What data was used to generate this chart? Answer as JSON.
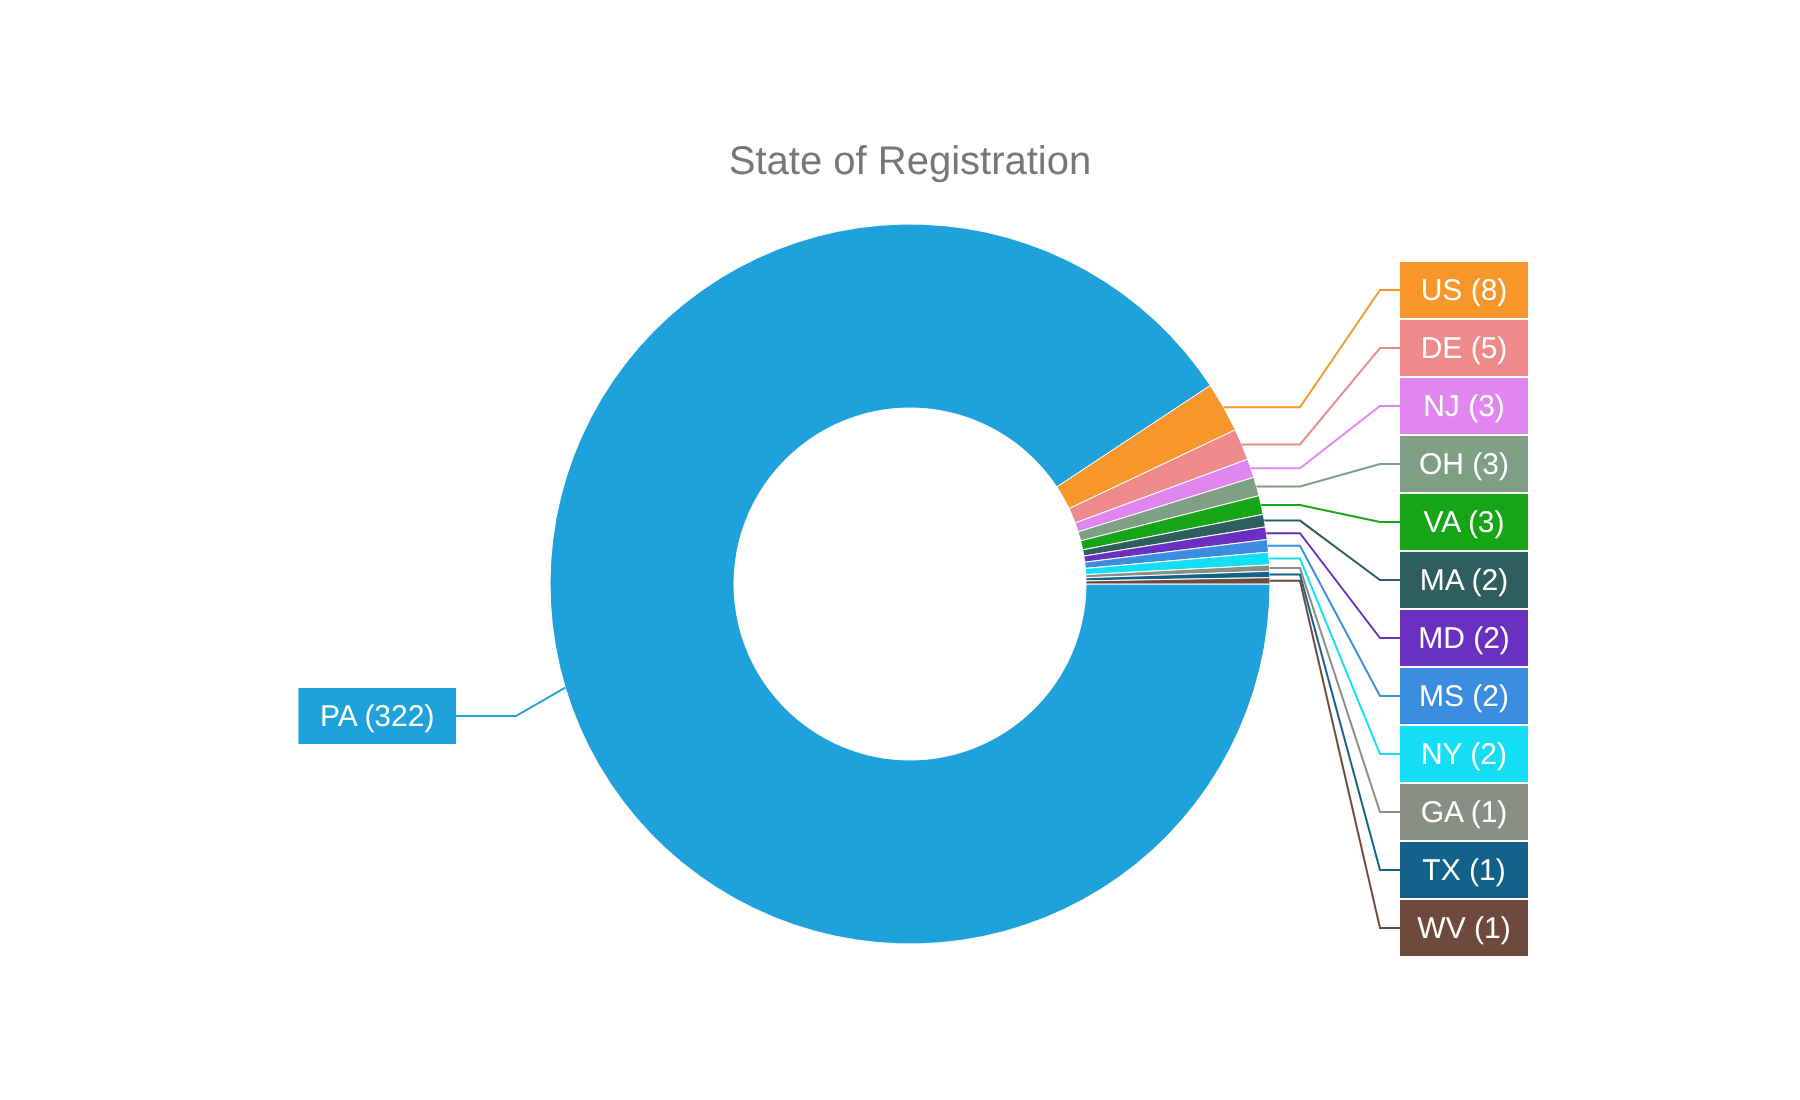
{
  "chart_data": {
    "type": "donut",
    "title": "State of Registration",
    "categories": [
      "PA (322)",
      "US (8)",
      "DE (5)",
      "NJ (3)",
      "OH (3)",
      "VA (3)",
      "MA (2)",
      "MD (2)",
      "MS (2)",
      "NY (2)",
      "GA (1)",
      "TX (1)",
      "WV (1)"
    ],
    "values": [
      322,
      8,
      5,
      3,
      3,
      3,
      2,
      2,
      2,
      2,
      1,
      1,
      1
    ],
    "colors": [
      "#1fa2db",
      "#f7962a",
      "#ee8a8a",
      "#e086f0",
      "#7f9e86",
      "#16a516",
      "#2f5e5e",
      "#6a30bf",
      "#3b8de0",
      "#14def4",
      "#8a8f86",
      "#12628a",
      "#6e4a3e"
    ]
  }
}
